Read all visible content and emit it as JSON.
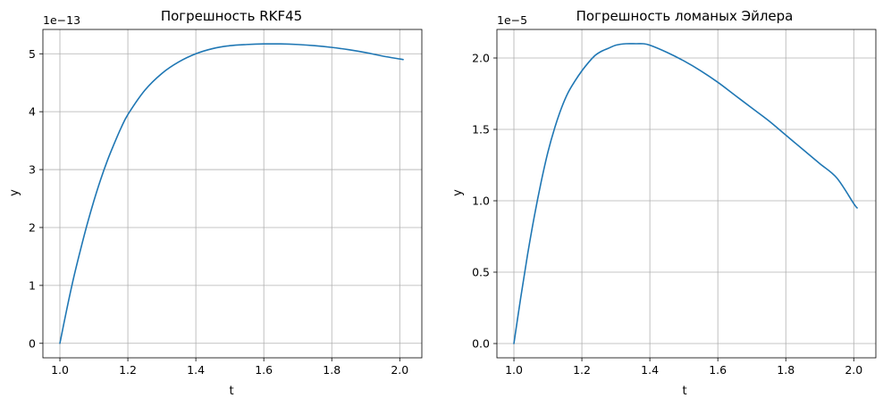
{
  "chart_data": [
    {
      "type": "line",
      "title": "Погрешность RKF45",
      "xlabel": "t",
      "ylabel": "y",
      "offset_text": "1e−13",
      "xlim": [
        0.95,
        2.065
      ],
      "ylim": [
        -0.25,
        5.42
      ],
      "xticks": [
        1.0,
        1.2,
        1.4,
        1.6,
        1.8,
        2.0
      ],
      "xtick_labels": [
        "1.0",
        "1.2",
        "1.4",
        "1.6",
        "1.8",
        "2.0"
      ],
      "yticks": [
        0,
        1,
        2,
        3,
        4,
        5
      ],
      "ytick_labels": [
        "0",
        "1",
        "2",
        "3",
        "4",
        "5"
      ],
      "grid": true,
      "series": [
        {
          "color": "#1f77b4",
          "x": [
            1.0,
            1.02,
            1.04,
            1.06,
            1.08,
            1.1,
            1.12,
            1.14,
            1.16,
            1.18,
            1.2,
            1.25,
            1.3,
            1.35,
            1.4,
            1.45,
            1.5,
            1.55,
            1.6,
            1.65,
            1.7,
            1.75,
            1.8,
            1.85,
            1.9,
            1.95,
            2.0,
            2.01
          ],
          "y": [
            0.0,
            0.58,
            1.12,
            1.6,
            2.05,
            2.46,
            2.83,
            3.16,
            3.45,
            3.72,
            3.95,
            4.37,
            4.66,
            4.86,
            5.0,
            5.09,
            5.14,
            5.16,
            5.17,
            5.17,
            5.16,
            5.14,
            5.11,
            5.07,
            5.02,
            4.96,
            4.91,
            4.9
          ]
        }
      ]
    },
    {
      "type": "line",
      "title": "Погрешность ломаных Эйлера",
      "xlabel": "t",
      "ylabel": "y",
      "offset_text": "1e−5",
      "xlim": [
        0.95,
        2.065
      ],
      "ylim": [
        -0.1,
        2.2
      ],
      "xticks": [
        1.0,
        1.2,
        1.4,
        1.6,
        1.8,
        2.0
      ],
      "xtick_labels": [
        "1.0",
        "1.2",
        "1.4",
        "1.6",
        "1.8",
        "2.0"
      ],
      "yticks": [
        0.0,
        0.5,
        1.0,
        1.5,
        2.0
      ],
      "ytick_labels": [
        "0.0",
        "0.5",
        "1.0",
        "1.5",
        "2.0"
      ],
      "grid": true,
      "series": [
        {
          "color": "#1f77b4",
          "x": [
            1.0,
            1.02,
            1.04,
            1.06,
            1.08,
            1.1,
            1.12,
            1.14,
            1.16,
            1.18,
            1.2,
            1.22,
            1.24,
            1.26,
            1.28,
            1.3,
            1.33,
            1.36,
            1.38,
            1.4,
            1.45,
            1.5,
            1.55,
            1.6,
            1.65,
            1.7,
            1.75,
            1.8,
            1.85,
            1.9,
            1.95,
            2.0,
            2.01
          ],
          "y": [
            0.0,
            0.32,
            0.62,
            0.89,
            1.13,
            1.34,
            1.51,
            1.65,
            1.76,
            1.84,
            1.91,
            1.97,
            2.02,
            2.05,
            2.07,
            2.09,
            2.1,
            2.1,
            2.1,
            2.09,
            2.04,
            1.98,
            1.91,
            1.83,
            1.74,
            1.65,
            1.56,
            1.46,
            1.36,
            1.26,
            1.16,
            0.98,
            0.95
          ]
        }
      ]
    }
  ]
}
